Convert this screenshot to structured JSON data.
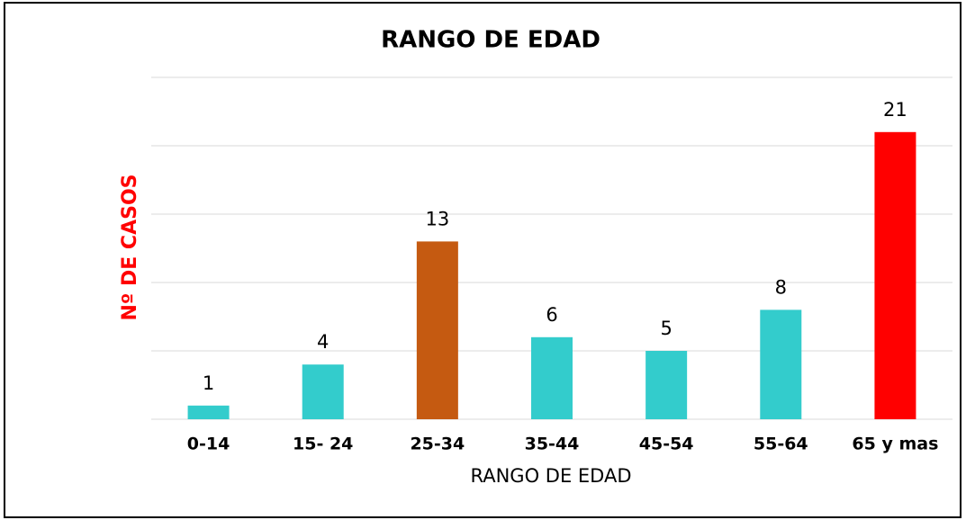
{
  "chart_data": {
    "type": "bar",
    "title": "RANGO DE EDAD",
    "x_label": "RANGO DE EDAD",
    "y_label": "Nº DE CASOS",
    "categories": [
      "0-14",
      "15- 24",
      "25-34",
      "35-44",
      "45-54",
      "55-64",
      "65 y mas"
    ],
    "values": [
      1,
      4,
      13,
      6,
      5,
      8,
      21
    ],
    "colors": [
      "#33cccc",
      "#33cccc",
      "#c55a11",
      "#33cccc",
      "#33cccc",
      "#33cccc",
      "#ff0000"
    ],
    "ylim": [
      0,
      25
    ],
    "yticks": [
      0,
      5,
      10,
      15,
      20,
      25
    ],
    "grid": true
  }
}
